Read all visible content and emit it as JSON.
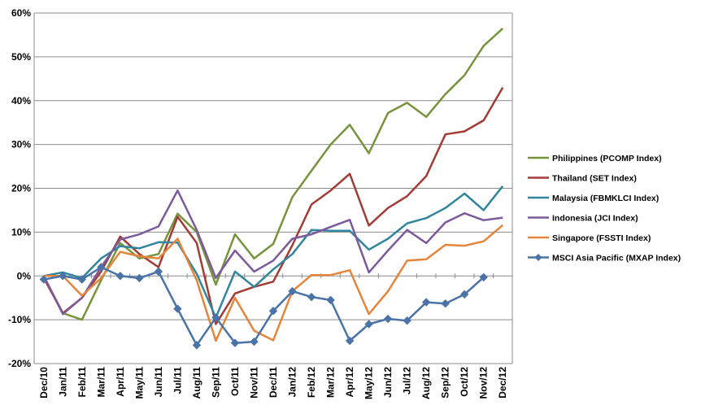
{
  "chart_data": {
    "type": "line",
    "title": "",
    "xlabel": "",
    "ylabel": "",
    "ylim": [
      -20,
      60
    ],
    "y_ticks": [
      -20,
      -10,
      0,
      10,
      20,
      30,
      40,
      50,
      60
    ],
    "y_tick_labels": [
      "-20%",
      "-10%",
      "0%",
      "10%",
      "20%",
      "30%",
      "40%",
      "50%",
      "60%"
    ],
    "grid": "horizontal",
    "legend_position": "right",
    "categories": [
      "Dec/10",
      "Jan/11",
      "Feb/11",
      "Mar/11",
      "Apr/11",
      "May/11",
      "Jun/11",
      "Jul/11",
      "Aug/11",
      "Sep/11",
      "Oct/11",
      "Nov/11",
      "Dec/11",
      "Jan/12",
      "Feb/12",
      "Mar/12",
      "Apr/12",
      "May/12",
      "Jun/12",
      "Jul/12",
      "Aug/12",
      "Sep/12",
      "Oct/12",
      "Nov/12",
      "Dec/12"
    ],
    "series": [
      {
        "name": "Philippines (PCOMP Index)",
        "color": "#77933C",
        "marker": "none",
        "values": [
          0,
          -8.5,
          -10,
          -1,
          7.5,
          4,
          5,
          14.2,
          10,
          -2,
          9.5,
          4,
          7.3,
          18,
          24,
          30,
          34.5,
          28,
          37.2,
          39.5,
          36.3,
          41.5,
          45.8,
          52.5,
          56.5
        ]
      },
      {
        "name": "Thailand (SET Index)",
        "color": "#A33B36",
        "marker": "none",
        "values": [
          -0.5,
          -8.5,
          -5,
          1,
          9,
          5,
          2,
          13.5,
          7.5,
          -11,
          -4,
          -2.5,
          -1.3,
          7,
          16.3,
          19.5,
          23.3,
          11.5,
          15.5,
          18.2,
          22.8,
          32.3,
          33,
          35.5,
          43
        ]
      },
      {
        "name": "Malaysia (FBMKLCI Index)",
        "color": "#31859C",
        "marker": "none",
        "values": [
          0,
          0.8,
          -0.5,
          4,
          6.8,
          6.3,
          7.7,
          7.6,
          0.5,
          -9.5,
          1,
          -2.5,
          1.5,
          5,
          10.5,
          10.3,
          10.3,
          6,
          8.5,
          12,
          13.2,
          15.5,
          18.8,
          15,
          20.5
        ]
      },
      {
        "name": "Indonesia (JCI Index)",
        "color": "#7D5A9B",
        "marker": "none",
        "values": [
          0,
          -8.7,
          -5,
          2,
          8.3,
          9.5,
          11.3,
          19.5,
          10.5,
          -0.5,
          5.8,
          1,
          3.5,
          8.5,
          9.5,
          11.2,
          12.8,
          0.8,
          5.8,
          10.5,
          7.5,
          12.2,
          14.3,
          12.7,
          13.3
        ]
      },
      {
        "name": "Singapore (FSSTI Index)",
        "color": "#E4853B",
        "marker": "none",
        "values": [
          0,
          0,
          -4.5,
          -0.5,
          5.5,
          4.5,
          4,
          8.5,
          -1,
          -14.8,
          -5,
          -12.5,
          -14.7,
          -3.5,
          0.2,
          0.2,
          1.3,
          -8.7,
          -3.5,
          3.5,
          3.8,
          7.1,
          6.9,
          7.9,
          11.6
        ]
      },
      {
        "name": "MSCI Asia Pacific (MXAP Index)",
        "color": "#4A73A8",
        "marker": "diamond",
        "values": [
          -0.8,
          0,
          -0.8,
          2,
          0,
          -0.5,
          1,
          -7.5,
          -15.8,
          -9.5,
          -15.3,
          -15,
          -8,
          -3.5,
          -4.8,
          -5.5,
          -14.8,
          -11,
          -9.8,
          -10.2,
          -6,
          -6.3,
          -4.2,
          -0.3,
          null
        ]
      }
    ]
  }
}
